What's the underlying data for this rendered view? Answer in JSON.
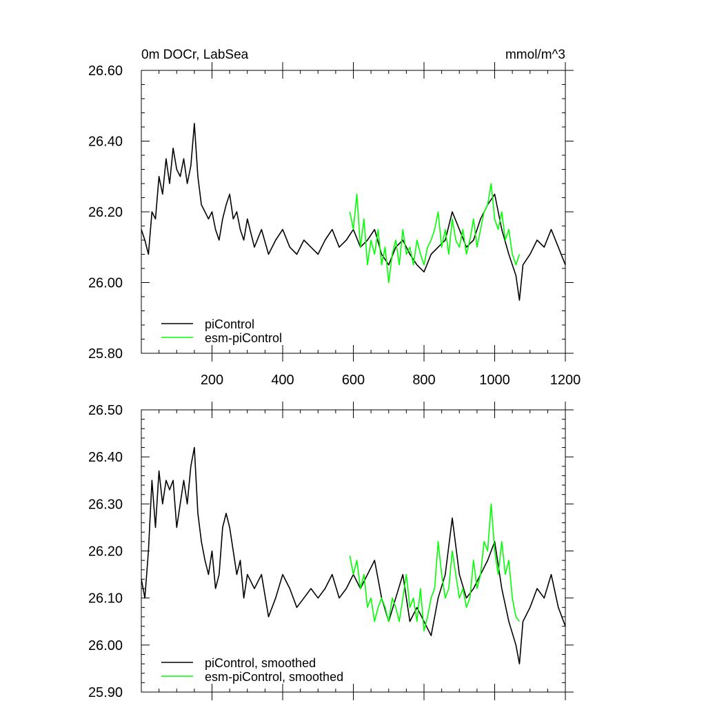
{
  "chart_data": [
    {
      "type": "line",
      "title": "0m DOCr, LabSea",
      "units": "mmol/m^3",
      "xlim": [
        0,
        1200
      ],
      "ylim": [
        25.8,
        26.6
      ],
      "xticks": [
        200,
        400,
        600,
        800,
        1000,
        1200
      ],
      "xtick_labels": [
        "200",
        "400",
        "600",
        "800",
        "1000",
        "1200"
      ],
      "yticks": [
        25.8,
        26.0,
        26.2,
        26.4,
        26.6
      ],
      "ytick_labels": [
        "25.80",
        "26.00",
        "26.20",
        "26.40",
        "26.60"
      ],
      "legend_position": "bottom-left",
      "series": [
        {
          "name": "piControl",
          "color": "#000000",
          "x": [
            0,
            10,
            20,
            30,
            40,
            50,
            60,
            70,
            80,
            90,
            100,
            110,
            120,
            130,
            140,
            150,
            160,
            170,
            180,
            190,
            200,
            210,
            220,
            230,
            240,
            250,
            260,
            270,
            280,
            290,
            300,
            320,
            340,
            360,
            380,
            400,
            420,
            440,
            460,
            480,
            500,
            520,
            540,
            560,
            580,
            600,
            620,
            640,
            660,
            680,
            700,
            720,
            740,
            760,
            780,
            800,
            820,
            840,
            860,
            880,
            900,
            920,
            940,
            960,
            980,
            1000,
            1020,
            1040,
            1060,
            1070,
            1080,
            1100,
            1120,
            1140,
            1160,
            1180,
            1200
          ],
          "y": [
            26.15,
            26.12,
            26.08,
            26.2,
            26.18,
            26.3,
            26.25,
            26.35,
            26.28,
            26.38,
            26.32,
            26.3,
            26.35,
            26.28,
            26.33,
            26.45,
            26.3,
            26.22,
            26.2,
            26.18,
            26.2,
            26.15,
            26.12,
            26.18,
            26.22,
            26.25,
            26.18,
            26.2,
            26.15,
            26.12,
            26.18,
            26.1,
            26.15,
            26.08,
            26.12,
            26.15,
            26.1,
            26.08,
            26.12,
            26.1,
            26.08,
            26.12,
            26.15,
            26.1,
            26.12,
            26.15,
            26.1,
            26.12,
            26.15,
            26.08,
            26.05,
            26.1,
            26.12,
            26.08,
            26.05,
            26.03,
            26.08,
            26.1,
            26.12,
            26.2,
            26.15,
            26.1,
            26.12,
            26.18,
            26.22,
            26.25,
            26.15,
            26.08,
            26.02,
            25.95,
            26.05,
            26.08,
            26.12,
            26.1,
            26.15,
            26.1,
            26.05
          ]
        },
        {
          "name": "esm-piControl",
          "color": "#00ff00",
          "x": [
            590,
            600,
            610,
            620,
            630,
            640,
            650,
            660,
            670,
            680,
            690,
            700,
            710,
            720,
            730,
            740,
            750,
            760,
            770,
            780,
            790,
            800,
            810,
            820,
            830,
            840,
            850,
            860,
            870,
            880,
            890,
            900,
            910,
            920,
            930,
            940,
            950,
            960,
            970,
            980,
            990,
            1000,
            1010,
            1020,
            1030,
            1040,
            1050,
            1060,
            1070
          ],
          "y": [
            26.2,
            26.15,
            26.25,
            26.1,
            26.18,
            26.05,
            26.12,
            26.08,
            26.15,
            26.05,
            26.1,
            26.0,
            26.08,
            26.12,
            26.05,
            26.15,
            26.08,
            26.1,
            26.05,
            26.12,
            26.08,
            26.05,
            26.1,
            26.12,
            26.15,
            26.2,
            26.1,
            26.15,
            26.08,
            26.18,
            26.12,
            26.1,
            26.15,
            26.08,
            26.12,
            26.18,
            26.1,
            26.15,
            26.2,
            26.22,
            26.28,
            26.18,
            26.15,
            26.2,
            26.12,
            26.15,
            26.08,
            26.05,
            26.08
          ]
        }
      ]
    },
    {
      "type": "line",
      "title": "",
      "xlim": [
        0,
        1200
      ],
      "ylim": [
        25.9,
        26.5
      ],
      "xticks": [
        200,
        400,
        600,
        800,
        1000,
        1200
      ],
      "yticks": [
        25.9,
        26.0,
        26.1,
        26.2,
        26.3,
        26.4,
        26.5
      ],
      "ytick_labels": [
        "25.90",
        "26.00",
        "26.10",
        "26.20",
        "26.30",
        "26.40",
        "26.50"
      ],
      "legend_position": "bottom-left",
      "series": [
        {
          "name": "piControl, smoothed",
          "color": "#000000",
          "x": [
            0,
            10,
            20,
            30,
            40,
            50,
            60,
            70,
            80,
            90,
            100,
            110,
            120,
            130,
            140,
            150,
            160,
            170,
            180,
            190,
            200,
            210,
            220,
            230,
            240,
            250,
            260,
            270,
            280,
            290,
            300,
            320,
            340,
            360,
            380,
            400,
            420,
            440,
            460,
            480,
            500,
            520,
            540,
            560,
            580,
            600,
            620,
            640,
            660,
            680,
            700,
            720,
            740,
            760,
            780,
            800,
            820,
            840,
            860,
            880,
            900,
            920,
            940,
            960,
            980,
            1000,
            1020,
            1040,
            1060,
            1070,
            1080,
            1100,
            1120,
            1140,
            1160,
            1180,
            1200
          ],
          "y": [
            26.14,
            26.1,
            26.2,
            26.35,
            26.25,
            26.37,
            26.3,
            26.35,
            26.33,
            26.35,
            26.25,
            26.3,
            26.35,
            26.3,
            26.38,
            26.42,
            26.28,
            26.22,
            26.18,
            26.15,
            26.2,
            26.12,
            26.15,
            26.25,
            26.28,
            26.25,
            26.2,
            26.15,
            26.18,
            26.1,
            26.15,
            26.12,
            26.15,
            26.06,
            26.1,
            26.15,
            26.12,
            26.08,
            26.1,
            26.12,
            26.1,
            26.12,
            26.15,
            26.1,
            26.12,
            26.15,
            26.12,
            26.15,
            26.18,
            26.1,
            26.05,
            26.1,
            26.15,
            26.05,
            26.08,
            26.05,
            26.02,
            26.1,
            26.15,
            26.27,
            26.15,
            26.1,
            26.12,
            26.15,
            26.18,
            26.22,
            26.12,
            26.05,
            26.0,
            25.96,
            26.05,
            26.08,
            26.12,
            26.1,
            26.15,
            26.08,
            26.04
          ]
        },
        {
          "name": "esm-piControl, smoothed",
          "color": "#00ff00",
          "x": [
            590,
            600,
            610,
            620,
            630,
            640,
            650,
            660,
            670,
            680,
            690,
            700,
            710,
            720,
            730,
            740,
            750,
            760,
            770,
            780,
            790,
            800,
            810,
            820,
            830,
            840,
            850,
            860,
            870,
            880,
            890,
            900,
            910,
            920,
            930,
            940,
            950,
            960,
            970,
            980,
            990,
            1000,
            1010,
            1020,
            1030,
            1040,
            1050,
            1060,
            1070
          ],
          "y": [
            26.19,
            26.15,
            26.18,
            26.12,
            26.15,
            26.08,
            26.1,
            26.05,
            26.08,
            26.1,
            26.08,
            26.05,
            26.1,
            26.08,
            26.05,
            26.1,
            26.15,
            26.08,
            26.1,
            26.05,
            26.12,
            26.03,
            26.06,
            26.1,
            26.12,
            26.22,
            26.15,
            26.1,
            26.12,
            26.2,
            26.15,
            26.1,
            26.12,
            26.08,
            26.1,
            26.18,
            26.12,
            26.15,
            26.22,
            26.2,
            26.3,
            26.2,
            26.15,
            26.22,
            26.15,
            26.18,
            26.1,
            26.06,
            26.05
          ]
        }
      ]
    }
  ]
}
